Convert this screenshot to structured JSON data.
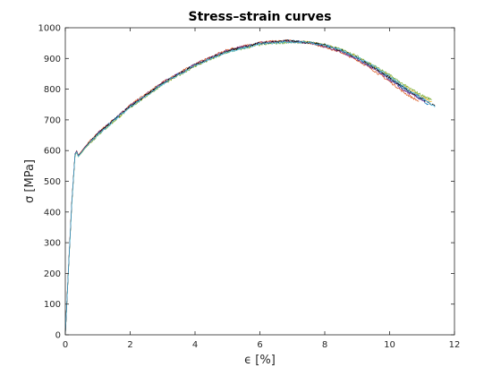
{
  "chart_data": {
    "type": "line",
    "title": "Stress–strain curves",
    "xlabel": "ϵ [%]",
    "ylabel": "σ [MPa]",
    "xlim": [
      0,
      12
    ],
    "ylim": [
      0,
      1000
    ],
    "xticks": [
      0,
      2,
      4,
      6,
      8,
      10,
      12
    ],
    "yticks": [
      0,
      100,
      200,
      300,
      400,
      500,
      600,
      700,
      800,
      900,
      1000
    ],
    "xtick_labels": [
      "0",
      "2",
      "4",
      "6",
      "8",
      "10",
      "12"
    ],
    "ytick_labels": [
      "0",
      "100",
      "200",
      "300",
      "400",
      "500",
      "600",
      "700",
      "800",
      "900",
      "1000"
    ],
    "grid": false,
    "legend": "none",
    "series": [
      {
        "color": "#0072BD",
        "x": [
          0,
          0.1,
          0.2,
          0.3,
          0.35,
          0.4,
          0.5,
          0.6,
          1,
          1.5,
          2,
          3,
          4,
          5,
          6,
          6.8,
          7.5,
          8,
          8.5,
          9,
          9.5,
          10,
          10.5,
          11,
          11.2
        ],
        "y": [
          0,
          220,
          430,
          590,
          598,
          580,
          595,
          610,
          655,
          700,
          745,
          820,
          880,
          925,
          950,
          957,
          953,
          942,
          925,
          900,
          870,
          835,
          797,
          765,
          750
        ]
      },
      {
        "color": "#D95319",
        "x": [
          0,
          0.1,
          0.2,
          0.3,
          0.35,
          0.4,
          0.5,
          0.6,
          1,
          1.5,
          2,
          3,
          4,
          5,
          6,
          6.8,
          7.5,
          8,
          8.5,
          9,
          9.5,
          10,
          10.5,
          10.9
        ],
        "y": [
          0,
          225,
          435,
          588,
          600,
          585,
          598,
          612,
          658,
          702,
          748,
          822,
          882,
          928,
          952,
          958,
          951,
          938,
          920,
          895,
          862,
          825,
          785,
          760
        ]
      },
      {
        "color": "#EDB120",
        "x": [
          0,
          0.1,
          0.2,
          0.3,
          0.35,
          0.4,
          0.5,
          0.6,
          1,
          1.5,
          2,
          3,
          4,
          5,
          6,
          6.8,
          7.5,
          8,
          8.5,
          9,
          9.5,
          10,
          10.5,
          11,
          11.3
        ],
        "y": [
          0,
          218,
          428,
          585,
          596,
          582,
          594,
          608,
          653,
          698,
          743,
          818,
          878,
          923,
          948,
          955,
          953,
          944,
          928,
          904,
          875,
          842,
          805,
          775,
          760
        ]
      },
      {
        "color": "#77AC30",
        "x": [
          0,
          0.1,
          0.2,
          0.3,
          0.35,
          0.4,
          0.5,
          0.6,
          1,
          1.5,
          2,
          3,
          4,
          5,
          6,
          6.8,
          7.5,
          8,
          8.5,
          9,
          9.5,
          10,
          10.5,
          11,
          11.3
        ],
        "y": [
          0,
          215,
          425,
          583,
          594,
          580,
          592,
          606,
          650,
          695,
          740,
          815,
          875,
          920,
          945,
          952,
          952,
          945,
          930,
          907,
          878,
          846,
          810,
          780,
          765
        ]
      },
      {
        "color": "#7E2F8E",
        "x": [
          0,
          0.1,
          0.2,
          0.3,
          0.35,
          0.4,
          0.5,
          0.6,
          1,
          1.5,
          2,
          3,
          4,
          5,
          6,
          6.8,
          7.5,
          8,
          8.5,
          9,
          9.5,
          10,
          10.5,
          11,
          11.1
        ],
        "y": [
          0,
          222,
          432,
          589,
          599,
          584,
          596,
          611,
          656,
          701,
          746,
          821,
          881,
          926,
          951,
          957,
          951,
          939,
          922,
          897,
          866,
          830,
          792,
          765,
          758
        ]
      },
      {
        "color": "#000000",
        "x": [
          0,
          0.1,
          0.2,
          0.3,
          0.35,
          0.4,
          0.5,
          0.6,
          1,
          1.5,
          2,
          3,
          4,
          5,
          6,
          6.8,
          7.5,
          8,
          8.5,
          9,
          9.5,
          10,
          10.5,
          11,
          11.4
        ],
        "y": [
          0,
          220,
          430,
          587,
          597,
          582,
          595,
          609,
          654,
          699,
          744,
          819,
          879,
          924,
          949,
          956,
          953,
          943,
          927,
          902,
          872,
          838,
          801,
          770,
          745
        ]
      },
      {
        "color": "#4DBEEE",
        "x": [
          0,
          0.1,
          0.2,
          0.3,
          0.35,
          0.4,
          0.5,
          0.6,
          1,
          1.5,
          2,
          3,
          4,
          5,
          6,
          6.8,
          7.5,
          8,
          8.5,
          9,
          9.5,
          10,
          10.5,
          11,
          11.4
        ],
        "y": [
          0,
          219,
          429,
          586,
          596,
          581,
          594,
          608,
          652,
          697,
          742,
          817,
          877,
          922,
          947,
          954,
          952,
          943,
          928,
          904,
          875,
          841,
          804,
          772,
          742
        ]
      }
    ]
  }
}
